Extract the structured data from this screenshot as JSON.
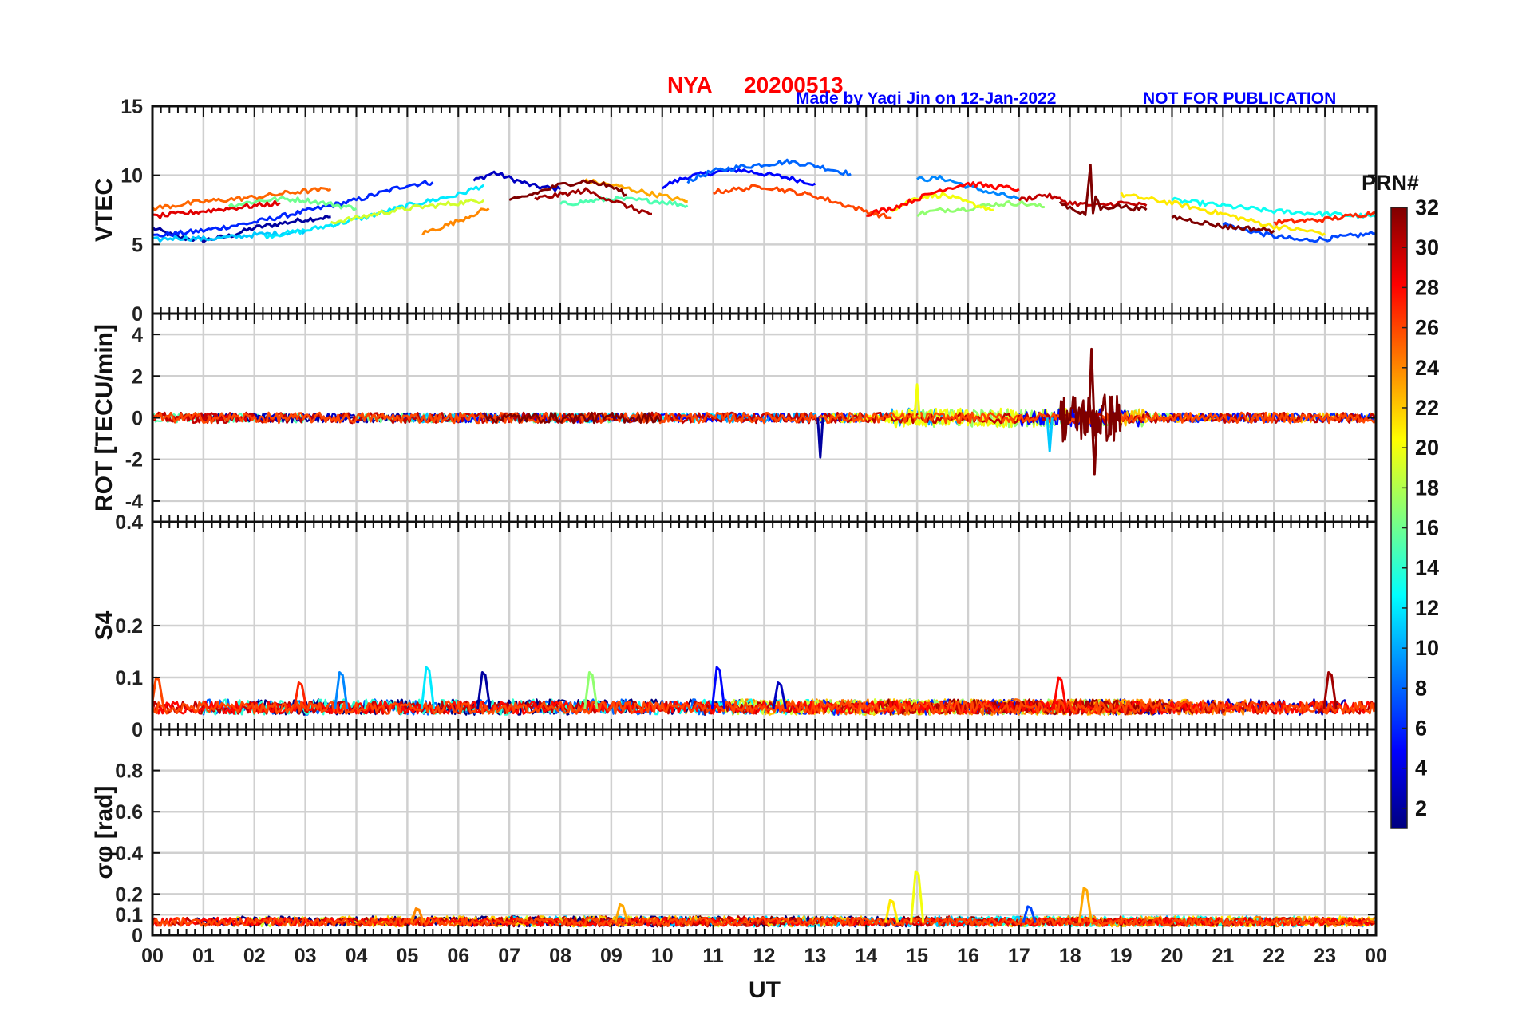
{
  "figure": {
    "title_station": "NYA",
    "title_date": "20200513",
    "credit": "Made by Yaqi Jin on 12-Jan-2022",
    "disclaimer": "NOT FOR PUBLICATION",
    "xlabel": "UT",
    "x_ticks": [
      "00",
      "01",
      "02",
      "03",
      "04",
      "05",
      "06",
      "07",
      "08",
      "09",
      "10",
      "11",
      "12",
      "13",
      "14",
      "15",
      "16",
      "17",
      "18",
      "19",
      "20",
      "21",
      "22",
      "23",
      "00"
    ],
    "x_range_hours": [
      0,
      24
    ]
  },
  "colorbar": {
    "title": "PRN#",
    "range": [
      1,
      32
    ],
    "ticks": [
      "2",
      "4",
      "6",
      "8",
      "10",
      "12",
      "14",
      "16",
      "18",
      "20",
      "22",
      "24",
      "26",
      "28",
      "30",
      "32"
    ],
    "colormap": "jet",
    "jet_stops": [
      "#00007f",
      "#0000ff",
      "#007fff",
      "#00ffff",
      "#7fff7f",
      "#ffff00",
      "#ff7f00",
      "#ff0000",
      "#7f0000"
    ]
  },
  "chart_data": [
    {
      "type": "line",
      "name": "vtec-panel",
      "ylabel": "VTEC",
      "ylim": [
        0,
        15
      ],
      "y_ticks": [
        "15",
        "10",
        "5",
        "0"
      ],
      "y_tick_values": [
        15,
        10,
        5,
        0
      ],
      "grid": true,
      "series": [
        {
          "prn": 2,
          "x": [
            0,
            0.5,
            1,
            1.5,
            2,
            3,
            3.5
          ],
          "y": [
            6.2,
            5.5,
            5.3,
            5.6,
            6.2,
            6.8,
            7.0
          ]
        },
        {
          "prn": 3,
          "x": [
            6.3,
            6.7,
            7,
            7.5,
            8
          ],
          "y": [
            9.6,
            10.2,
            9.8,
            9.2,
            9.0
          ]
        },
        {
          "prn": 5,
          "x": [
            10,
            10.5,
            11,
            11.5,
            12,
            12.5,
            13
          ],
          "y": [
            9.2,
            9.9,
            10.2,
            10.4,
            10.1,
            9.8,
            9.4
          ]
        },
        {
          "prn": 6,
          "x": [
            0,
            1,
            2,
            3,
            4,
            5,
            5.5
          ],
          "y": [
            5.6,
            6.0,
            6.6,
            7.4,
            8.2,
            9.3,
            9.5
          ]
        },
        {
          "prn": 7,
          "x": [
            21,
            21.5,
            22,
            22.5,
            23,
            23.5,
            24
          ],
          "y": [
            6.5,
            6.0,
            5.6,
            5.3,
            5.4,
            5.6,
            5.8
          ]
        },
        {
          "prn": 8,
          "x": [
            10.5,
            11,
            11.5,
            12,
            12.5,
            13,
            13.7
          ],
          "y": [
            9.6,
            10.3,
            10.6,
            10.8,
            11.0,
            10.7,
            10.1
          ]
        },
        {
          "prn": 9,
          "x": [
            15,
            15.5,
            16,
            16.5,
            17
          ],
          "y": [
            9.7,
            9.8,
            9.2,
            8.7,
            8.3
          ]
        },
        {
          "prn": 11,
          "x": [
            0,
            0.5,
            1,
            1.5,
            2,
            2.5,
            3
          ],
          "y": [
            5.3,
            5.5,
            5.4,
            5.5,
            5.7,
            5.8,
            6.0
          ]
        },
        {
          "prn": 12,
          "x": [
            2.2,
            3,
            4,
            5,
            6,
            6.5
          ],
          "y": [
            5.6,
            6.0,
            6.8,
            7.8,
            8.6,
            9.3
          ]
        },
        {
          "prn": 13,
          "x": [
            20,
            21,
            22,
            23,
            24
          ],
          "y": [
            8.2,
            7.8,
            7.4,
            7.2,
            7.0
          ]
        },
        {
          "prn": 15,
          "x": [
            8,
            9,
            10,
            10.5
          ],
          "y": [
            7.9,
            8.3,
            8.1,
            7.8
          ]
        },
        {
          "prn": 16,
          "x": [
            1.5,
            2,
            2.5,
            3,
            3.5,
            4
          ],
          "y": [
            7.8,
            8.1,
            8.3,
            8.2,
            7.9,
            7.6
          ]
        },
        {
          "prn": 17,
          "x": [
            15,
            15.5,
            16,
            16.5,
            17,
            17.5
          ],
          "y": [
            7.2,
            7.5,
            7.6,
            7.9,
            8.0,
            7.7
          ]
        },
        {
          "prn": 19,
          "x": [
            3.5,
            4,
            4.5,
            5,
            6,
            6.5
          ],
          "y": [
            6.6,
            6.9,
            7.3,
            7.6,
            8.0,
            8.2
          ]
        },
        {
          "prn": 20,
          "x": [
            14.5,
            15,
            15.5,
            16,
            16.5
          ],
          "y": [
            7.5,
            8.4,
            8.6,
            8.0,
            7.5
          ]
        },
        {
          "prn": 21,
          "x": [
            19,
            20,
            21,
            22,
            23
          ],
          "y": [
            8.6,
            8.0,
            7.2,
            6.3,
            5.8
          ]
        },
        {
          "prn": 23,
          "x": [
            8.5,
            9,
            9.5,
            10,
            10.5
          ],
          "y": [
            9.6,
            9.3,
            8.9,
            8.5,
            8.1
          ]
        },
        {
          "prn": 24,
          "x": [
            5.3,
            5.7,
            6,
            6.3,
            6.6
          ],
          "y": [
            5.8,
            6.3,
            6.7,
            7.2,
            7.6
          ]
        },
        {
          "prn": 25,
          "x": [
            0,
            1,
            2,
            2.8,
            3.5
          ],
          "y": [
            7.6,
            8.1,
            8.4,
            8.8,
            9.0
          ]
        },
        {
          "prn": 26,
          "x": [
            11,
            12,
            13,
            14,
            14.5
          ],
          "y": [
            8.8,
            9.2,
            8.5,
            7.4,
            6.9
          ]
        },
        {
          "prn": 27,
          "x": [
            22,
            23,
            24
          ],
          "y": [
            6.6,
            6.8,
            7.3
          ]
        },
        {
          "prn": 28,
          "x": [
            14,
            14.5,
            15,
            15.5,
            16,
            17
          ],
          "y": [
            7.2,
            7.6,
            8.3,
            9.0,
            9.4,
            9.0
          ]
        },
        {
          "prn": 29,
          "x": [
            0,
            0.5,
            1,
            1.5,
            2,
            2.5
          ],
          "y": [
            7.0,
            7.2,
            7.4,
            7.6,
            7.8,
            8.0
          ]
        },
        {
          "prn": 30,
          "x": [
            17,
            17.5,
            18,
            18.5,
            19,
            19.5
          ],
          "y": [
            8.2,
            8.6,
            8.0,
            7.8,
            8.0,
            7.8
          ]
        },
        {
          "prn": 31,
          "x": [
            7.5,
            8,
            8.5,
            9,
            9.5,
            9.8
          ],
          "y": [
            8.3,
            8.6,
            8.9,
            8.2,
            7.5,
            7.2
          ]
        },
        {
          "prn": 32,
          "x": [
            7,
            7.5,
            8,
            8.5,
            9,
            9.3
          ],
          "y": [
            8.1,
            8.7,
            9.3,
            9.6,
            9.2,
            8.6
          ]
        },
        {
          "prn": 32,
          "x": [
            17.8,
            18.1,
            18.3,
            18.4,
            18.45,
            18.5,
            18.6,
            18.9,
            19.5
          ],
          "y": [
            8.0,
            7.5,
            7.2,
            10.6,
            7.1,
            8.5,
            7.6,
            7.8,
            7.5
          ]
        },
        {
          "prn": 32,
          "x": [
            20,
            21,
            22
          ],
          "y": [
            7.0,
            6.3,
            6.0
          ]
        }
      ]
    },
    {
      "type": "line",
      "name": "rot-panel",
      "ylabel": "ROT [TECU/min]",
      "ylim": [
        -5,
        5
      ],
      "y_ticks": [
        "4",
        "2",
        "0",
        "-2",
        "-4"
      ],
      "y_tick_values": [
        4,
        2,
        0,
        -2,
        -4
      ],
      "grid": true,
      "notable_events": [
        {
          "ut": 13.1,
          "rot": -1.9,
          "prn": 2
        },
        {
          "ut": 15.0,
          "rot": 1.6,
          "prn": 20
        },
        {
          "ut": 17.6,
          "rot": -1.6,
          "prn": 11
        },
        {
          "ut": 18.42,
          "rot": 3.3,
          "prn": 32
        },
        {
          "ut": 18.48,
          "rot": -2.7,
          "prn": 32
        }
      ]
    },
    {
      "type": "line",
      "name": "s4-panel",
      "ylabel": "S4",
      "ylim": [
        0,
        0.4
      ],
      "y_ticks": [
        "0.4",
        "0.2",
        "0.1",
        "0"
      ],
      "y_tick_values": [
        0.4,
        0.2,
        0.1,
        0
      ],
      "grid": true,
      "baseline": 0.04,
      "peaks": [
        {
          "ut": 0.1,
          "s4": 0.1,
          "prn": 26
        },
        {
          "ut": 2.9,
          "s4": 0.09,
          "prn": 27
        },
        {
          "ut": 3.7,
          "s4": 0.11,
          "prn": 9
        },
        {
          "ut": 5.4,
          "s4": 0.12,
          "prn": 12
        },
        {
          "ut": 6.5,
          "s4": 0.11,
          "prn": 2
        },
        {
          "ut": 8.6,
          "s4": 0.11,
          "prn": 17
        },
        {
          "ut": 11.1,
          "s4": 0.12,
          "prn": 5
        },
        {
          "ut": 12.3,
          "s4": 0.09,
          "prn": 3
        },
        {
          "ut": 17.8,
          "s4": 0.1,
          "prn": 28
        },
        {
          "ut": 23.1,
          "s4": 0.11,
          "prn": 31
        }
      ]
    },
    {
      "type": "line",
      "name": "sigma-phi-panel",
      "ylabel": "σφ [rad]",
      "ylim": [
        0,
        1
      ],
      "y_ticks": [
        "0.8",
        "0.6",
        "0.4",
        "0.2",
        "0.1",
        "0"
      ],
      "y_tick_values": [
        0.8,
        0.6,
        0.4,
        0.2,
        0.1,
        0
      ],
      "grid": true,
      "baseline": 0.06,
      "peaks": [
        {
          "ut": 5.2,
          "sigma": 0.13,
          "prn": 24
        },
        {
          "ut": 9.2,
          "sigma": 0.15,
          "prn": 23
        },
        {
          "ut": 14.5,
          "sigma": 0.17,
          "prn": 21
        },
        {
          "ut": 15.0,
          "sigma": 0.31,
          "prn": 20
        },
        {
          "ut": 17.2,
          "sigma": 0.14,
          "prn": 7
        },
        {
          "ut": 18.3,
          "sigma": 0.23,
          "prn": 23
        }
      ]
    }
  ]
}
